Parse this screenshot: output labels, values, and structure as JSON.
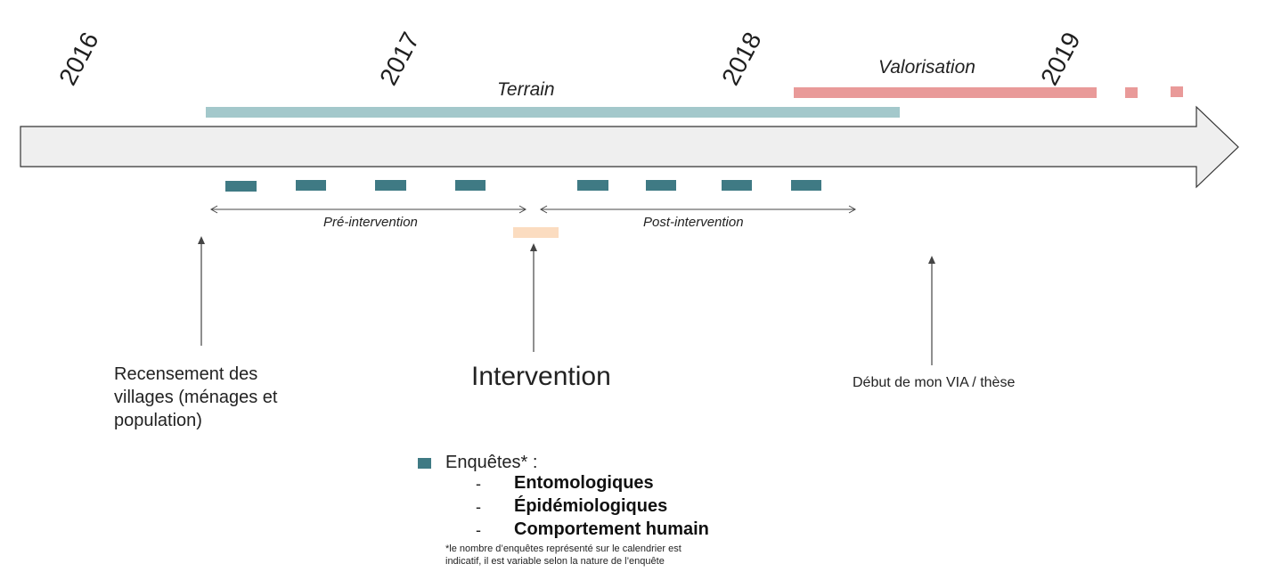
{
  "years": [
    "2016",
    "2017",
    "2018",
    "2019"
  ],
  "phases": {
    "terrain": "Terrain",
    "valorisation": "Valorisation"
  },
  "periods": {
    "pre": "Pré-intervention",
    "post": "Post-intervention"
  },
  "events": {
    "recensement": [
      "Recensement des",
      "villages (ménages et",
      "population)"
    ],
    "intervention": "Intervention",
    "via": "Début de mon VIA / thèse"
  },
  "legend": {
    "title": "Enquêtes* :",
    "items": [
      "Entomologiques",
      "Épidémiologiques",
      "Comportement humain"
    ],
    "dash": "-",
    "note_lines": [
      "*le nombre d’enquêtes représenté sur le calendrier est",
      "indicatif, il est variable selon la nature de l’enquête"
    ]
  },
  "colors": {
    "terrain_bar": "#a3c8cb",
    "valorisation_bar": "#e99a99",
    "survey_block": "#3f7a84",
    "intervention_block": "#fbdcc0",
    "arrow_fill": "#efefef",
    "arrow_stroke": "#333333"
  }
}
